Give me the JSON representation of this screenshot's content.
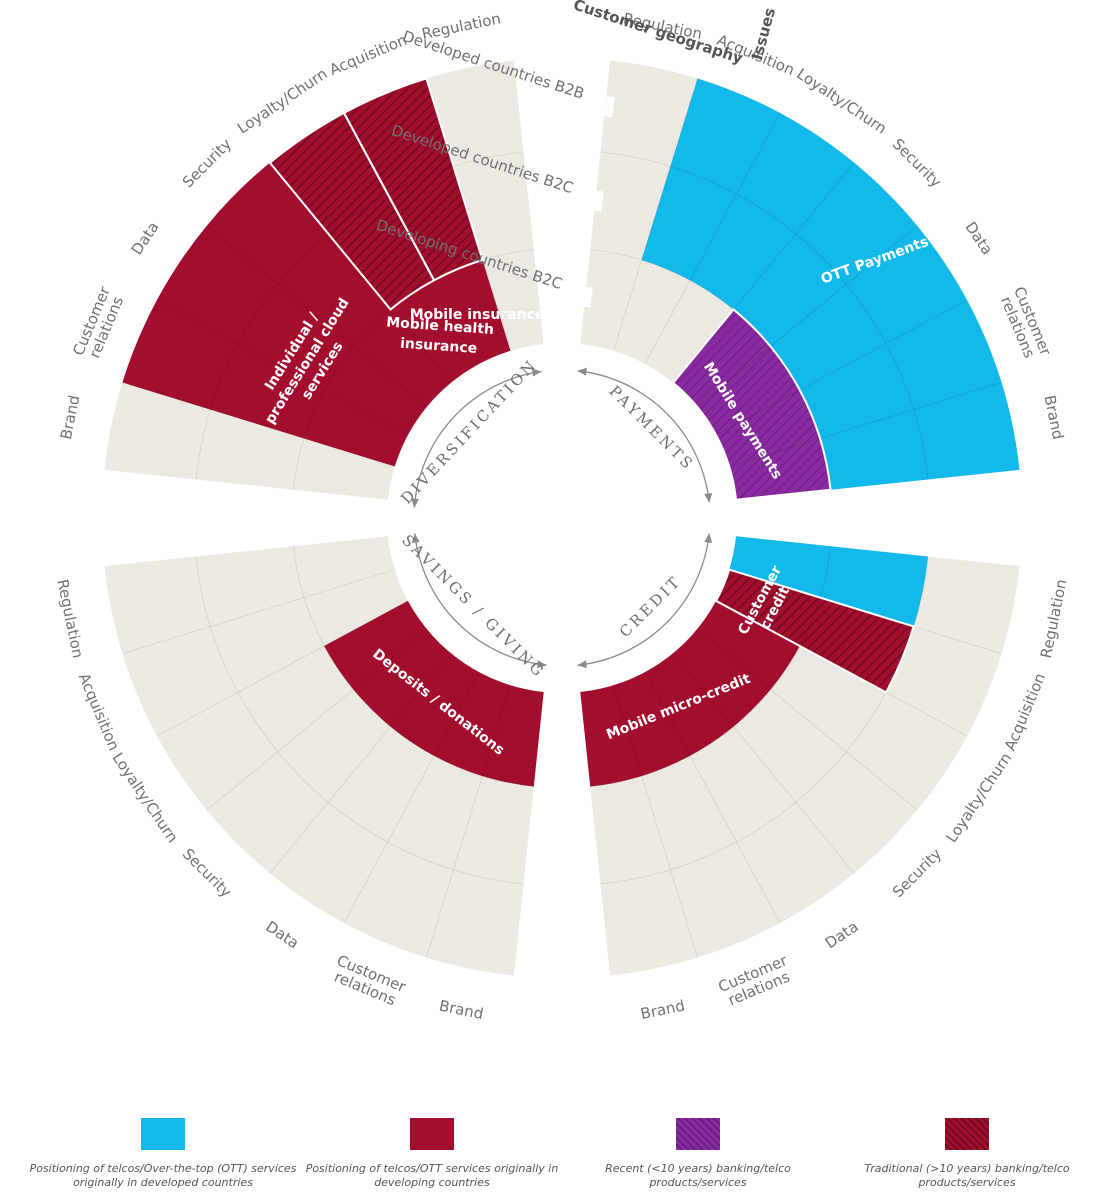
{
  "colors": {
    "cyan": "#12b9ea",
    "red": "#a30d2e",
    "purple": "#8a2aa0",
    "grey": "#ebe9e2",
    "hatch_dark": "#6e0b20"
  },
  "header": {
    "customer_geography": "Customer geography",
    "issues": "Issues"
  },
  "geography": {
    "b2b": "Developed countries B2B",
    "b2c_developed": "Developed countries B2C",
    "b2c_developing": "Developing countries B2C"
  },
  "domains": {
    "diversification": "DIVERSIFICATION",
    "payments": "PAYMENTS",
    "credit": "CREDIT",
    "savings": "SAVINGS / GIVING"
  },
  "issue_labels": {
    "topleft": [
      "Brand",
      "Customer relations",
      "Data",
      "Security",
      "Loyalty/Churn",
      "Acquisition",
      "Regulation"
    ],
    "topright": [
      "Regulation",
      "Acquisition",
      "Loyalty/Churn",
      "Security",
      "Data",
      "Customer relations",
      "Brand"
    ],
    "bottomright": [
      "Regulation",
      "Acquisition",
      "Loyalty/Churn",
      "Security",
      "Data",
      "Customer relations",
      "Brand"
    ],
    "bottomleft": [
      "Brand",
      "Customer relations",
      "Data",
      "Security",
      "Loyalty/Churn",
      "Acquisition",
      "Regulation"
    ]
  },
  "services": {
    "cloud": "Individual / professional cloud services",
    "health": "Mobile health insurance",
    "insurance": "Mobile insurance",
    "mobile_payments": "Mobile payments",
    "ott": "OTT Payments",
    "customer_credit": "Customer credit",
    "micro_credit": "Mobile micro-credit",
    "deposits": "Deposits / donations"
  },
  "legend": [
    {
      "color": "#12b9ea",
      "pattern": "solid",
      "text": "Positioning of telcos/Over-the-top (OTT) services originally in developed countries"
    },
    {
      "color": "#a30d2e",
      "pattern": "solid",
      "text": "Positioning of telcos/OTT services originally in developing countries"
    },
    {
      "color": "#8a2aa0",
      "pattern": "hatch",
      "text": "Recent (<10 years) banking/telco products/services"
    },
    {
      "color": "#a30d2e",
      "pattern": "hatch",
      "text": "Traditional (>10 years) banking/telco products/services"
    }
  ]
}
